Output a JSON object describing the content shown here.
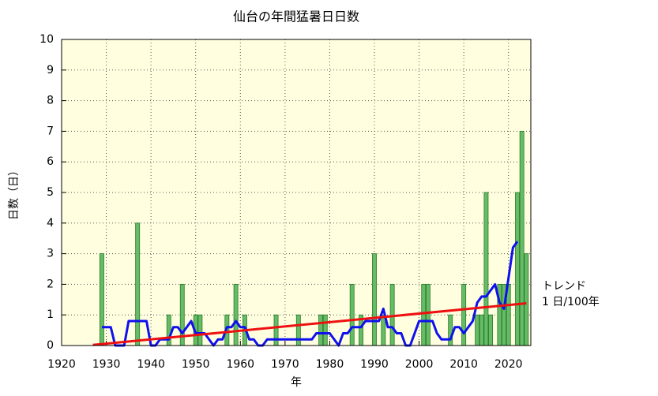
{
  "chart_data": {
    "type": "bar",
    "title": "仙台の年間猛暑日日数",
    "xlabel": "年",
    "ylabel": "日数（日）",
    "xlim": [
      1920,
      2025
    ],
    "xticks": [
      1920,
      1930,
      1940,
      1950,
      1960,
      1970,
      1980,
      1990,
      2000,
      2010,
      2020
    ],
    "ylim": [
      0,
      10
    ],
    "yticks": [
      0,
      1,
      2,
      3,
      4,
      5,
      6,
      7,
      8,
      9,
      10
    ],
    "grid": true,
    "series": [
      {
        "type": "bar",
        "color": "#66bb66",
        "x": [
          1929,
          1937,
          1944,
          1947,
          1950,
          1951,
          1957,
          1959,
          1961,
          1968,
          1973,
          1978,
          1979,
          1985,
          1987,
          1990,
          1992,
          1994,
          2001,
          2002,
          2007,
          2010,
          2013,
          2014,
          2015,
          2016,
          2018,
          2019,
          2020,
          2022,
          2023,
          2024
        ],
        "values": [
          3,
          4,
          1,
          2,
          1,
          1,
          1,
          2,
          1,
          1,
          1,
          1,
          1,
          2,
          1,
          3,
          1,
          2,
          2,
          2,
          1,
          2,
          1,
          1,
          5,
          1,
          2,
          2,
          2,
          5,
          7,
          3
        ]
      },
      {
        "type": "line",
        "color": "#1010ee",
        "x": [
          1929,
          1930,
          1931,
          1932,
          1933,
          1934,
          1935,
          1936,
          1937,
          1938,
          1939,
          1940,
          1941,
          1942,
          1943,
          1944,
          1945,
          1946,
          1947,
          1948,
          1949,
          1950,
          1951,
          1952,
          1953,
          1954,
          1955,
          1956,
          1957,
          1958,
          1959,
          1960,
          1961,
          1962,
          1963,
          1964,
          1965,
          1966,
          1967,
          1968,
          1969,
          1970,
          1971,
          1972,
          1973,
          1974,
          1975,
          1976,
          1977,
          1978,
          1979,
          1980,
          1981,
          1982,
          1983,
          1984,
          1985,
          1986,
          1987,
          1988,
          1989,
          1990,
          1991,
          1992,
          1993,
          1994,
          1995,
          1996,
          1997,
          1998,
          1999,
          2000,
          2001,
          2002,
          2003,
          2004,
          2005,
          2006,
          2007,
          2008,
          2009,
          2010,
          2011,
          2012,
          2013,
          2014,
          2015,
          2016,
          2017,
          2018,
          2019,
          2020,
          2021,
          2022
        ],
        "values": [
          0.6,
          0.6,
          0.6,
          0,
          0,
          0,
          0.8,
          0.8,
          0.8,
          0.8,
          0.8,
          0,
          0,
          0.2,
          0.2,
          0.2,
          0.6,
          0.6,
          0.4,
          0.6,
          0.8,
          0.4,
          0.4,
          0.4,
          0.2,
          0,
          0.2,
          0.2,
          0.6,
          0.6,
          0.8,
          0.6,
          0.6,
          0.2,
          0.2,
          0,
          0,
          0.2,
          0.2,
          0.2,
          0.2,
          0.2,
          0.2,
          0.2,
          0.2,
          0.2,
          0.2,
          0.2,
          0.4,
          0.4,
          0.4,
          0.4,
          0.2,
          0,
          0.4,
          0.4,
          0.6,
          0.6,
          0.6,
          0.8,
          0.8,
          0.8,
          0.8,
          1.2,
          0.6,
          0.6,
          0.4,
          0.4,
          0,
          0,
          0.4,
          0.8,
          0.8,
          0.8,
          0.8,
          0.4,
          0.2,
          0.2,
          0.2,
          0.6,
          0.6,
          0.4,
          0.6,
          0.8,
          1.4,
          1.6,
          1.6,
          1.8,
          2,
          1.4,
          1.2,
          2.2,
          3.2,
          3.4
        ]
      },
      {
        "type": "line",
        "color": "#ee1010",
        "x": [
          1927,
          2024
        ],
        "values": [
          0.02,
          1.38
        ]
      }
    ],
    "annotations": [
      "トレンド",
      "1 日/100年"
    ]
  }
}
